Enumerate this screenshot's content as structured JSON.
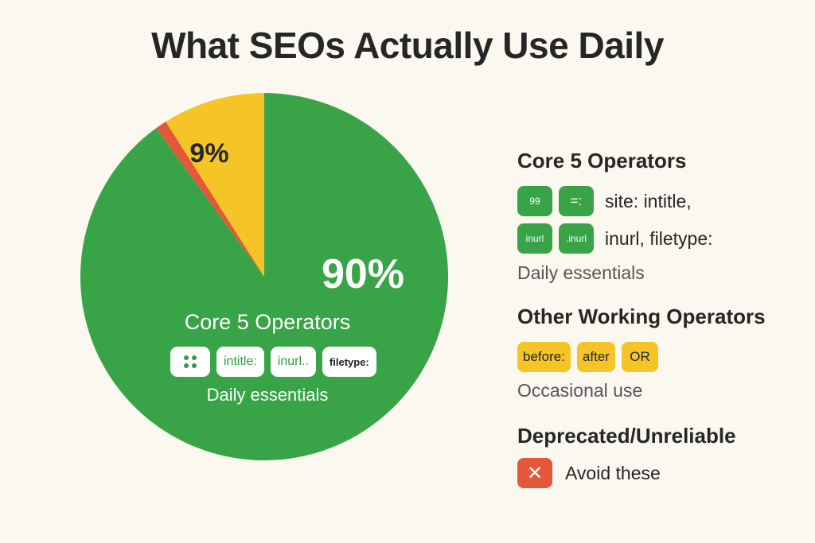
{
  "title": "What SEOs Actually Use Daily",
  "colors": {
    "green": "#38a447",
    "yellow": "#f5c527",
    "red": "#e4573b",
    "background": "#fbf8f0"
  },
  "chart_data": {
    "type": "pie",
    "title": "What SEOs Actually Use Daily",
    "slices": [
      {
        "name": "Core 5 Operators",
        "value": 90,
        "label": "90%",
        "color": "#38a447"
      },
      {
        "name": "Deprecated/Unreliable",
        "value": 1,
        "label": "",
        "color": "#e4573b"
      },
      {
        "name": "Other Working Operators",
        "value": 9,
        "label": "9%",
        "color": "#f5c527"
      }
    ]
  },
  "pie_inner": {
    "heading": "Core 5 Operators",
    "tags": [
      "",
      "intitle:",
      "inurl..",
      "filetype:"
    ],
    "note": "Daily essentials"
  },
  "legend": {
    "core": {
      "heading": "Core 5 Operators",
      "chips_row1": [
        "99",
        "=:"
      ],
      "ops_row1": "site:  intitle,",
      "chips_row2": [
        "inurl",
        ".inurl"
      ],
      "ops_row2": "inurl,  filetype:",
      "note": "Daily essentials"
    },
    "other": {
      "heading": "Other Working Operators",
      "chips": [
        "before:",
        "after",
        "OR"
      ],
      "note": "Occasional use"
    },
    "deprecated": {
      "heading": "Deprecated/Unreliable",
      "icon": "close-icon",
      "note": "Avoid these"
    }
  }
}
